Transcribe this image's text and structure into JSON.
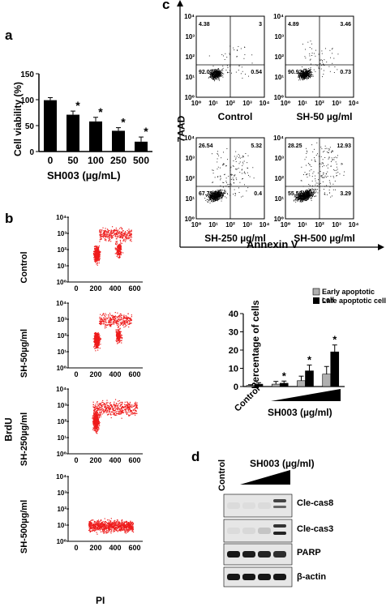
{
  "panels": {
    "a": "a",
    "b": "b",
    "c": "c",
    "d": "d"
  },
  "panel_a": {
    "ylabel": "Cell viability (%)",
    "xlabel": "SH003 (µg/mL)",
    "star": "*"
  },
  "panel_b": {
    "ylabel": "BrdU",
    "xlabel": "PI",
    "rows": [
      "Control",
      "SH-50µg/ml",
      "SH-250µg/ml",
      "SH-500µg/ml"
    ],
    "yticks": [
      "10⁰",
      "10¹",
      "10²",
      "10³",
      "10⁴"
    ],
    "xticks": [
      "0",
      "200",
      "400",
      "600"
    ]
  },
  "panel_c": {
    "ylabel": "7AAD",
    "xlabel": "Annexin V",
    "plots": [
      {
        "label": "Control",
        "q": [
          "4.38",
          "3",
          "92.07",
          "0.54"
        ]
      },
      {
        "label": "SH-50 µg/ml",
        "q": [
          "4.89",
          "3.46",
          "90.92",
          "0.73"
        ]
      },
      {
        "label": "SH-250 µg/ml",
        "q": [
          "26.54",
          "5.32",
          "67.75",
          "0.4"
        ]
      },
      {
        "label": "SH-500 µg/ml",
        "q": [
          "28.25",
          "12.93",
          "55.52",
          "3.29"
        ]
      }
    ],
    "yticks": [
      "10⁰",
      "10¹",
      "10²",
      "10³",
      "10⁴"
    ],
    "xticks": [
      "10⁰",
      "10¹",
      "10²",
      "10³",
      "10⁴"
    ]
  },
  "panel_c_bar": {
    "ylabel": "Percentage of cells",
    "control_label": "Control",
    "xlabel": "SH003 (µg/ml)",
    "legend": [
      "Early apoptotic cell",
      "Late apoptotic cell"
    ],
    "star": "*"
  },
  "panel_d": {
    "control_label": "Control",
    "header": "SH003 (µg/ml)",
    "proteins": [
      "Cle-cas8",
      "Cle-cas3",
      "PARP",
      "β-actin"
    ]
  },
  "chart_data": [
    {
      "type": "bar",
      "categories": [
        "0",
        "50",
        "100",
        "250",
        "500"
      ],
      "values": [
        99,
        71,
        58,
        40,
        19
      ],
      "errors": [
        5,
        7,
        8,
        6,
        9
      ],
      "significant": [
        false,
        true,
        true,
        true,
        true
      ],
      "xlabel": "SH003 (µg/mL)",
      "ylabel": "Cell viability (%)",
      "ylim": [
        0,
        150
      ],
      "yticks": [
        0,
        50,
        100,
        150
      ]
    },
    {
      "type": "bar",
      "categories": [
        "Control",
        "",
        "",
        ""
      ],
      "series": [
        {
          "name": "Early apoptotic cell",
          "color": "#b0b0b0",
          "values": [
            0.6,
            1.3,
            3.2,
            6.8
          ],
          "errors": [
            0.4,
            1.5,
            2.5,
            4.2
          ]
        },
        {
          "name": "Late apoptotic cell",
          "color": "#000000",
          "values": [
            1.3,
            1.8,
            8.6,
            19.0
          ],
          "errors": [
            0.8,
            1.2,
            3.2,
            3.8
          ]
        }
      ],
      "significant_late": [
        false,
        true,
        true,
        true
      ],
      "xlabel": "SH003 (µg/ml)",
      "ylabel": "Percentage of cells",
      "ylim": [
        0,
        40
      ],
      "yticks": [
        0,
        10,
        20,
        30,
        40
      ]
    }
  ]
}
